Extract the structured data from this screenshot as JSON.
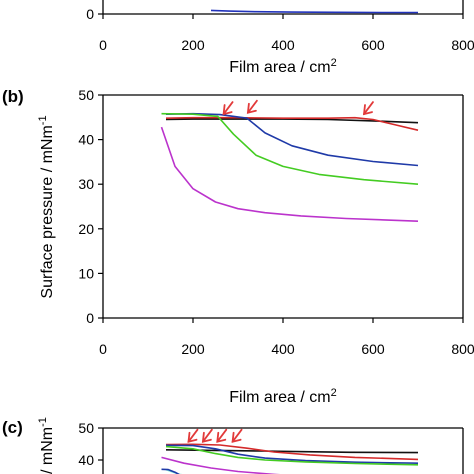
{
  "chart_data": [
    {
      "panel": "a",
      "type": "line",
      "title": "",
      "xlabel_prefix": "Film area / cm",
      "xlabel_sup": "2",
      "ylabel": "",
      "panel_label": "",
      "xlim": [
        0,
        800
      ],
      "ylim": [
        0,
        50
      ],
      "xticks": [
        "0",
        "200",
        "400",
        "600",
        "800"
      ],
      "yticks": [
        "0"
      ],
      "series": [
        {
          "color": "#2233bb",
          "x": [
            240,
            280,
            340,
            420,
            520,
            620,
            700
          ],
          "y": [
            2.8,
            2.3,
            1.8,
            1.5,
            1.3,
            1.2,
            1.2
          ]
        }
      ]
    },
    {
      "panel": "b",
      "type": "line",
      "title": "",
      "xlabel_prefix": "Film area / cm",
      "xlabel_sup": "2",
      "ylabel_prefix": "Surface pressure / mNm",
      "ylabel_sup": "-1",
      "panel_label": "(b)",
      "xlim": [
        0,
        800
      ],
      "ylim": [
        0,
        50
      ],
      "xticks": [
        "0",
        "200",
        "400",
        "600",
        "800"
      ],
      "yticks": [
        "0",
        "10",
        "20",
        "30",
        "40",
        "50"
      ],
      "series": [
        {
          "color": "#111111",
          "x": [
            140,
            200,
            300,
            400,
            500,
            600,
            700
          ],
          "y": [
            44.5,
            44.6,
            44.6,
            44.6,
            44.5,
            44.2,
            43.8
          ]
        },
        {
          "color": "#d42a2a",
          "x": [
            140,
            200,
            300,
            400,
            500,
            560,
            600,
            650,
            700
          ],
          "y": [
            44.8,
            44.9,
            44.9,
            44.8,
            44.8,
            44.9,
            44.5,
            43.3,
            42.1
          ]
        },
        {
          "color": "#1f3aa8",
          "x": [
            140,
            200,
            260,
            320,
            360,
            420,
            500,
            600,
            700
          ],
          "y": [
            45.7,
            45.8,
            45.6,
            44.8,
            41.5,
            38.6,
            36.5,
            35.1,
            34.2
          ]
        },
        {
          "color": "#44cc22",
          "x": [
            130,
            200,
            255,
            290,
            340,
            400,
            480,
            580,
            700
          ],
          "y": [
            45.8,
            45.7,
            45.2,
            41.2,
            36.5,
            34.0,
            32.2,
            31.0,
            30.0
          ]
        },
        {
          "color": "#bb33cc",
          "x": [
            130,
            160,
            200,
            250,
            300,
            360,
            440,
            540,
            700
          ],
          "y": [
            42.8,
            34.0,
            29.0,
            26.0,
            24.5,
            23.6,
            22.9,
            22.3,
            21.7
          ]
        }
      ],
      "annotations": [
        {
          "type": "arrow",
          "color": "#e23a3a",
          "x": 268,
          "y": 45.5
        },
        {
          "type": "arrow",
          "color": "#e23a3a",
          "x": 322,
          "y": 45.8
        },
        {
          "type": "arrow",
          "color": "#e23a3a",
          "x": 580,
          "y": 45.5
        }
      ]
    },
    {
      "panel": "c",
      "type": "line",
      "title": "",
      "xlabel": "",
      "ylabel_prefix": "/ mNm",
      "ylabel_sup": "-1",
      "panel_label": "(c)",
      "xlim": [
        0,
        800
      ],
      "ylim": [
        30,
        50
      ],
      "xticks": [],
      "yticks": [
        "40",
        "50"
      ],
      "series": [
        {
          "color": "#111111",
          "x": [
            140,
            250,
            350,
            450,
            550,
            700
          ],
          "y": [
            43.2,
            43.0,
            42.8,
            42.6,
            42.4,
            42.3
          ]
        },
        {
          "color": "#d42a2a",
          "x": [
            140,
            200,
            260,
            320,
            380,
            460,
            560,
            700
          ],
          "y": [
            44.8,
            44.9,
            44.7,
            43.7,
            42.5,
            41.6,
            40.8,
            40.2
          ]
        },
        {
          "color": "#1f3aa8",
          "x": [
            140,
            200,
            250,
            300,
            360,
            450,
            560,
            700
          ],
          "y": [
            44.6,
            44.5,
            43.5,
            41.8,
            40.6,
            39.8,
            39.3,
            39.0
          ]
        },
        {
          "color": "#44cc22",
          "x": [
            140,
            200,
            250,
            300,
            360,
            450,
            560,
            700
          ],
          "y": [
            44.2,
            43.5,
            42.0,
            40.8,
            40.0,
            39.4,
            38.9,
            38.5
          ]
        },
        {
          "color": "#bb33cc",
          "x": [
            130,
            180,
            240,
            300,
            380,
            480,
            580,
            700
          ],
          "y": [
            40.8,
            39.0,
            37.5,
            36.4,
            35.5,
            34.6,
            33.8,
            33.0
          ]
        },
        {
          "color": "#7ee8d8",
          "x": [
            140,
            170,
            220,
            280,
            340,
            420
          ],
          "y": [
            37.0,
            35.5,
            34.5,
            33.6,
            32.8,
            32.0
          ]
        },
        {
          "color": "#1f3aa8",
          "x": [
            130,
            145,
            160,
            175,
            195,
            225,
            260
          ],
          "y": [
            37.1,
            37.0,
            36.2,
            35.0,
            33.6,
            32.2,
            31.0
          ]
        }
      ],
      "annotations": [
        {
          "type": "arrow",
          "color": "#e23a3a",
          "x": 190,
          "y": 45.4
        },
        {
          "type": "arrow",
          "color": "#e23a3a",
          "x": 222,
          "y": 45.4
        },
        {
          "type": "arrow",
          "color": "#e23a3a",
          "x": 254,
          "y": 45.4
        },
        {
          "type": "arrow",
          "color": "#e23a3a",
          "x": 288,
          "y": 45.4
        }
      ]
    }
  ]
}
